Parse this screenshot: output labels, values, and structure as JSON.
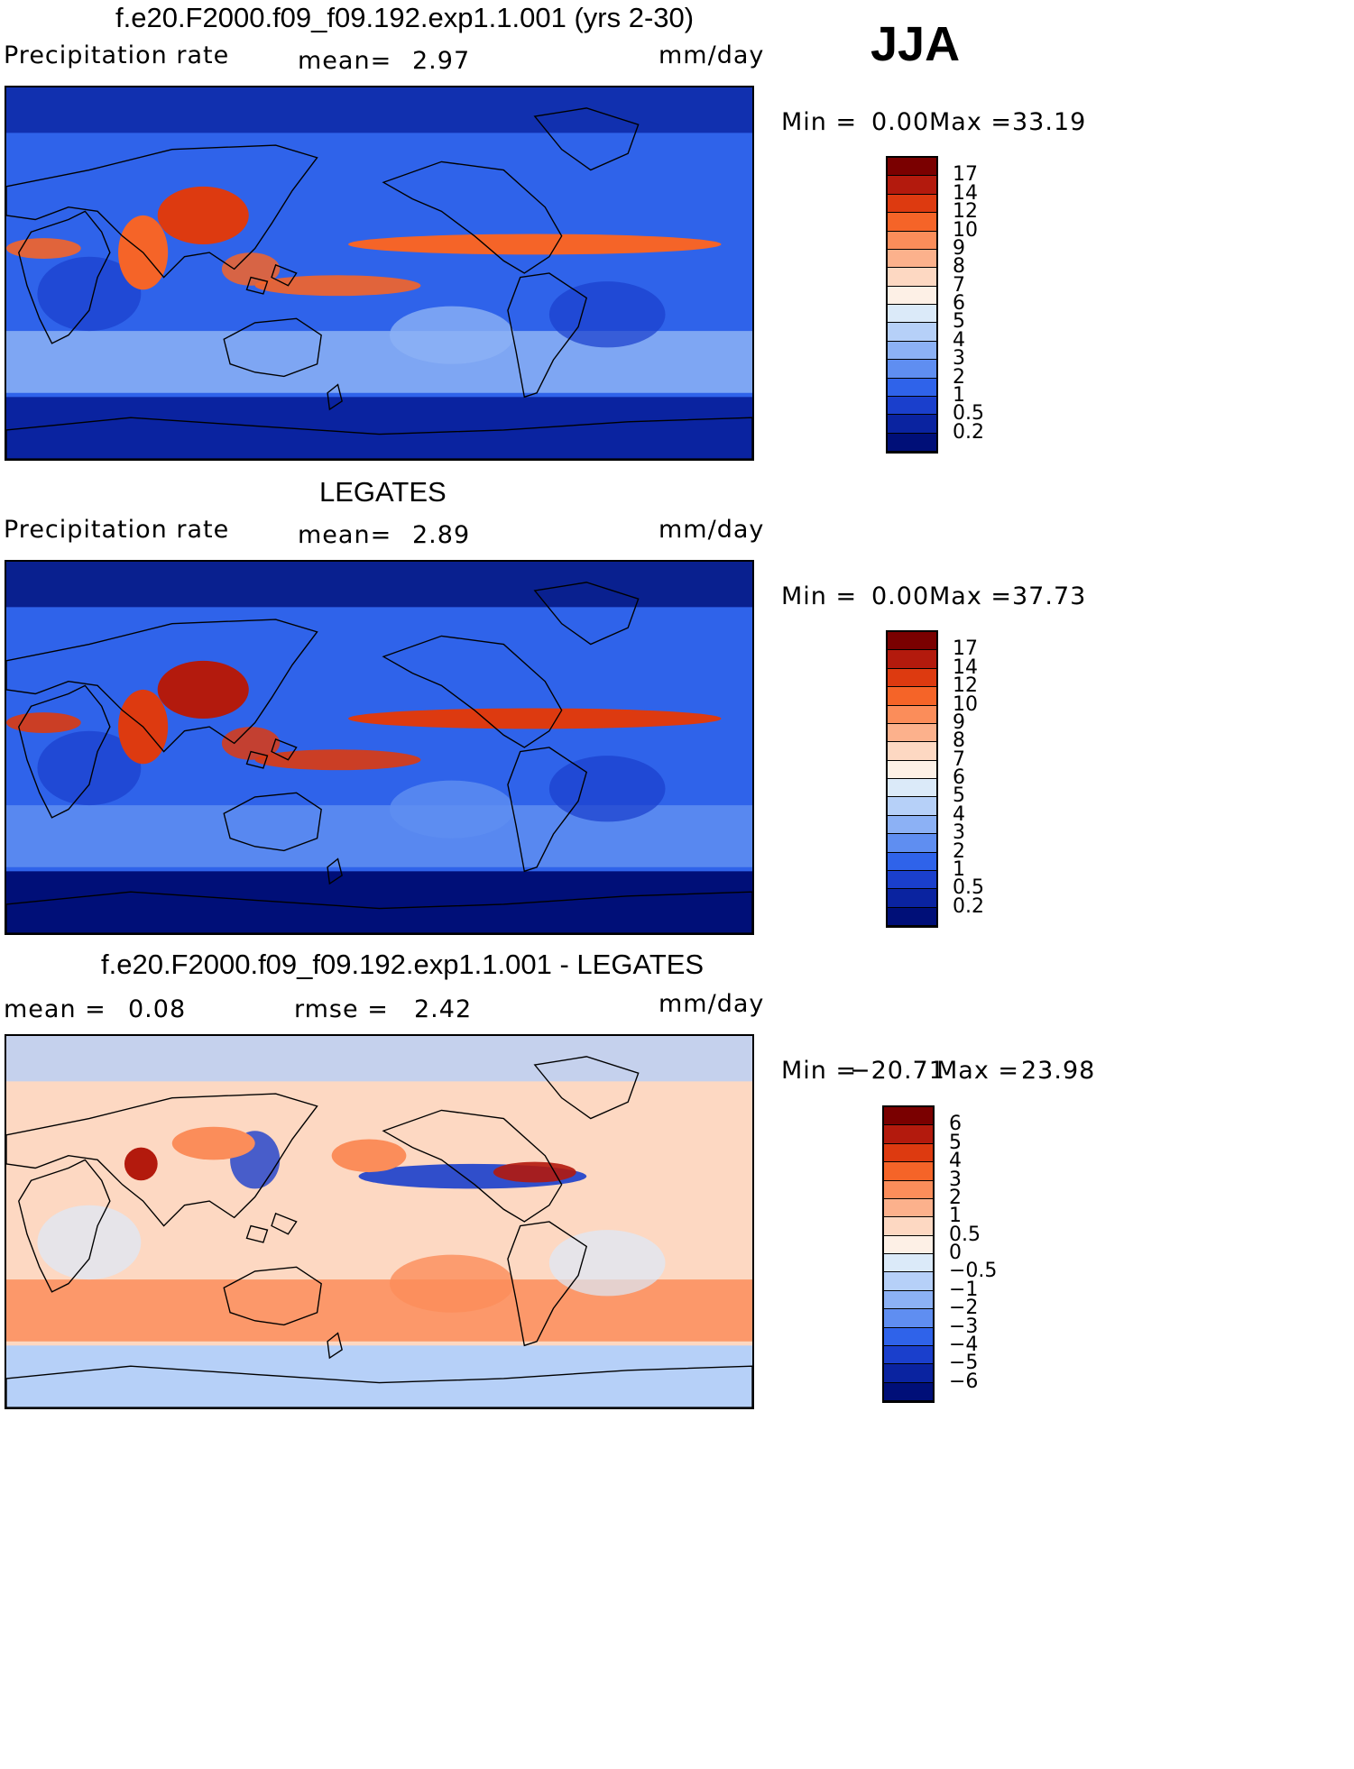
{
  "season": "JJA",
  "units": "mm/day",
  "panels": [
    {
      "title": "f.e20.F2000.f09_f09.192.exp1.1.001 (yrs 2-30)",
      "left_label": "Precipitation rate",
      "mid_label": "mean=",
      "mid_value": "2.97",
      "right_label": "mm/day",
      "min_label": "Min =",
      "min_value": "0.00",
      "max_label": "Max =",
      "max_value": "33.19",
      "colorbar_ticks": [
        "17",
        "14",
        "12",
        "10",
        "9",
        "8",
        "7",
        "6",
        "5",
        "4",
        "3",
        "2",
        "1",
        "0.5",
        "0.2"
      ],
      "colorbar_colors": [
        "#7a0000",
        "#b31a0d",
        "#dd3a10",
        "#f56428",
        "#fb8d5a",
        "#fcb18c",
        "#fdd8c2",
        "#fdf0e6",
        "#dbeaf9",
        "#b6d0f8",
        "#8cb1f5",
        "#5f8ef1",
        "#2f63ea",
        "#1a3fcc",
        "#0a23a0",
        "#000f78"
      ]
    },
    {
      "title": "LEGATES",
      "left_label": "Precipitation rate",
      "mid_label": "mean=",
      "mid_value": "2.89",
      "right_label": "mm/day",
      "min_label": "Min =",
      "min_value": "0.00",
      "max_label": "Max =",
      "max_value": "37.73",
      "colorbar_ticks": [
        "17",
        "14",
        "12",
        "10",
        "9",
        "8",
        "7",
        "6",
        "5",
        "4",
        "3",
        "2",
        "1",
        "0.5",
        "0.2"
      ],
      "colorbar_colors": [
        "#7a0000",
        "#b31a0d",
        "#dd3a10",
        "#f56428",
        "#fb8d5a",
        "#fcb18c",
        "#fdd8c2",
        "#fdf0e6",
        "#dbeaf9",
        "#b6d0f8",
        "#8cb1f5",
        "#5f8ef1",
        "#2f63ea",
        "#1a3fcc",
        "#0a23a0",
        "#000f78"
      ]
    },
    {
      "title": "f.e20.F2000.f09_f09.192.exp1.1.001 - LEGATES",
      "left_label": "mean =",
      "left_value": "0.08",
      "mid_label": "rmse =",
      "mid_value": "2.42",
      "right_label": "mm/day",
      "min_label": "Min =",
      "min_value": "−20.71",
      "max_label": "Max =",
      "max_value": "23.98",
      "colorbar_ticks": [
        "6",
        "5",
        "4",
        "3",
        "2",
        "1",
        "0.5",
        "0",
        "−0.5",
        "−1",
        "−2",
        "−3",
        "−4",
        "−5",
        "−6"
      ],
      "colorbar_colors": [
        "#7a0000",
        "#b31a0d",
        "#dd3a10",
        "#f56428",
        "#fb8d5a",
        "#fcb18c",
        "#fdd8c2",
        "#fdf0e6",
        "#dbeaf9",
        "#b6d0f8",
        "#8cb1f5",
        "#5f8ef1",
        "#2f63ea",
        "#1a3fcc",
        "#0a23a0",
        "#000f78"
      ]
    }
  ],
  "map_palettes": {
    "model": {
      "background": "#2f63ea",
      "polar": "#0a23a0",
      "subtropics": "#8cb1f5",
      "dry": "#1a3fcc",
      "itcz": "#f56428",
      "monsoon": "#dd3a10",
      "coast": "#000000"
    },
    "obs": {
      "background": "#2f63ea",
      "polar": "#000f78",
      "subtropics": "#5f8ef1",
      "dry": "#1a3fcc",
      "itcz": "#dd3a10",
      "monsoon": "#b31a0d",
      "coast": "#000000"
    },
    "diff": {
      "background": "#fdd8c2",
      "polar": "#b6d0f8",
      "subtropics": "#fb8d5a",
      "dry": "#dbeaf9",
      "itcz": "#1a3fcc",
      "monsoon": "#b31a0d",
      "coast": "#000000"
    }
  }
}
